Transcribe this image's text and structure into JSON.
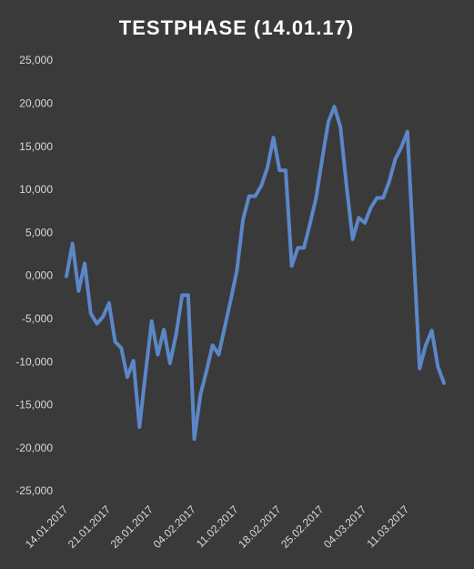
{
  "chart_data": {
    "type": "line",
    "title": "TESTPHASE (14.01.17)",
    "categories": [
      "14.01.2017",
      null,
      null,
      null,
      null,
      null,
      null,
      "21.01.2017",
      null,
      null,
      null,
      null,
      null,
      null,
      "28.01.2017",
      null,
      null,
      null,
      null,
      null,
      null,
      "04.02.2017",
      null,
      null,
      null,
      null,
      null,
      null,
      "11.02.2017",
      null,
      null,
      null,
      null,
      null,
      null,
      "18.02.2017",
      null,
      null,
      null,
      null,
      null,
      null,
      "25.02.2017",
      null,
      null,
      null,
      null,
      null,
      null,
      "04.03.2017",
      null,
      null,
      null,
      null,
      null,
      null,
      "11.03.2017",
      null,
      null,
      null,
      null,
      null,
      null
    ],
    "values": [
      0,
      3800,
      -1700,
      1500,
      -4300,
      -5500,
      -4700,
      -3100,
      -7600,
      -8300,
      -11700,
      -9800,
      -17500,
      -11200,
      -5200,
      -9100,
      -6200,
      -10100,
      -6800,
      -2200,
      -2200,
      -18900,
      -13800,
      -11000,
      -8000,
      -9100,
      -5900,
      -2700,
      700,
      6600,
      9300,
      9300,
      10500,
      12600,
      16100,
      12300,
      12300,
      1200,
      3300,
      3300,
      6100,
      9100,
      13600,
      17900,
      19700,
      17300,
      10500,
      4300,
      6800,
      6200,
      8000,
      9100,
      9100,
      11000,
      13600,
      15000,
      16800,
      3000,
      -10700,
      -8000,
      -6300,
      -10500,
      -12400
    ],
    "color": "#5b87c8",
    "ylim": [
      -25000,
      25000
    ],
    "yticks": [
      {
        "value": -25000,
        "label": "-25,000"
      },
      {
        "value": -20000,
        "label": "-20,000"
      },
      {
        "value": -15000,
        "label": "-15,000"
      },
      {
        "value": -10000,
        "label": "-10,000"
      },
      {
        "value": -5000,
        "label": "-5,000"
      },
      {
        "value": 0,
        "label": "0,000"
      },
      {
        "value": 5000,
        "label": "5,000"
      },
      {
        "value": 10000,
        "label": "10,000"
      },
      {
        "value": 15000,
        "label": "15,000"
      },
      {
        "value": 20000,
        "label": "20,000"
      },
      {
        "value": 25000,
        "label": "25,000"
      }
    ],
    "grid": false
  }
}
